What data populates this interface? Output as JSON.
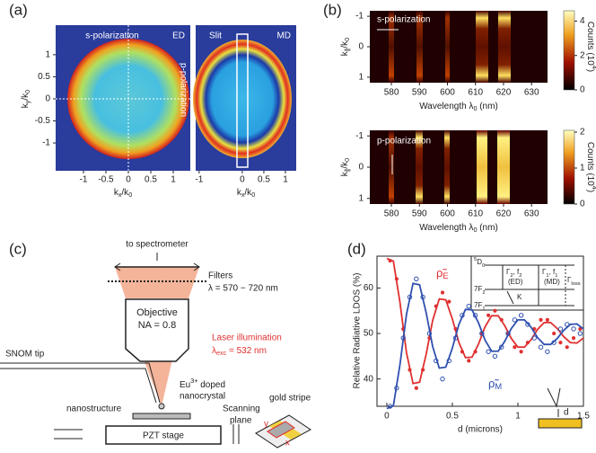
{
  "panels": {
    "a": {
      "label": "(a)",
      "left": {
        "xlim": [
          -1.62,
          1.38
        ],
        "ylim": [
          -1.63,
          1.67
        ],
        "xticks": [
          -1,
          -0.5,
          0,
          0.5,
          1
        ],
        "yticks": [
          -1,
          -0.5,
          0,
          0.5,
          1
        ],
        "texts": {
          "top": "s-polarization",
          "corner": "ED",
          "side": "p-polarization"
        }
      },
      "right": {
        "xlim": [
          -1.08,
          1.25
        ],
        "xticks": [
          -1,
          0,
          0.5,
          1
        ],
        "texts": {
          "slit": "Slit",
          "corner": "MD"
        }
      },
      "xlabel": [
        {
          "t": "k"
        },
        {
          "sub": "x"
        },
        {
          "t": "/k"
        },
        {
          "sub": "0"
        }
      ],
      "ylabel": [
        {
          "t": "k"
        },
        {
          "sub": "y"
        },
        {
          "t": "/k"
        },
        {
          "sub": "0"
        }
      ]
    },
    "b": {
      "label": "(b)",
      "xlim": [
        572.3,
        635.7
      ],
      "xticks": [
        580,
        590,
        600,
        610,
        620,
        630
      ],
      "xlabel": [
        {
          "t": "Wavelength λ"
        },
        {
          "sub": "0"
        },
        {
          "t": " (nm)"
        }
      ],
      "ylabel": [
        {
          "t": "k"
        },
        {
          "sub": "∥"
        },
        {
          "t": "/k"
        },
        {
          "sub": "0"
        }
      ],
      "cbar_label": [
        {
          "t": "Counts (10"
        },
        {
          "sup": "4"
        },
        {
          "t": ")"
        }
      ],
      "top": {
        "note": "s-polarization",
        "ylim": [
          -1.18,
          1.18
        ],
        "yticks": [
          -1,
          0,
          1
        ],
        "cbar_lim": [
          0,
          4.6
        ],
        "cbar_ticks": [
          0,
          2,
          4
        ]
      },
      "bottom": {
        "note": "p-polarization",
        "ylim": [
          -1.18,
          1.18
        ],
        "yticks": [
          -1,
          0,
          1
        ],
        "cbar_lim": [
          0,
          2.05
        ],
        "cbar_ticks": [
          0,
          1,
          2
        ]
      }
    },
    "c": {
      "label": "(c)",
      "texts": {
        "spectrometer": "to spectrometer",
        "filters": "Filters",
        "range": "λ = 570 − 720 nm",
        "objective": "Objective",
        "na": "NA = 0.8",
        "laser": "Laser illumination",
        "snom": "SNOM tip",
        "nanostructure": "nanostructure",
        "nanocrystal": "nanocrystal",
        "stage": "PZT stage",
        "scanning": "Scanning",
        "plane": "plane",
        "gold": "gold stripe",
        "y": "y",
        "x": "x"
      },
      "laser_lambda": [
        {
          "t": "λ"
        },
        {
          "sub": "exc"
        },
        {
          "t": " = 532 nm"
        }
      ],
      "eu": [
        {
          "t": "Eu"
        },
        {
          "sup": "3+"
        },
        {
          "t": " doped"
        }
      ]
    },
    "d": {
      "label": "(d)",
      "xlabel": "d (microns)",
      "ylabel": "Relative Radiative LDOS (%)",
      "xlim": [
        -0.075,
        1.5
      ],
      "ylim": [
        34,
        67
      ],
      "xticks": [
        0,
        0.5,
        1,
        1.5
      ],
      "yticks": [
        40,
        50,
        60
      ],
      "curve_x": [
        0,
        0.05,
        0.1,
        0.15,
        0.2,
        0.25,
        0.3,
        0.35,
        0.4,
        0.45,
        0.5,
        0.55,
        0.6,
        0.65,
        0.7,
        0.75,
        0.8,
        0.85,
        0.9,
        0.95,
        1,
        1.05,
        1.1,
        1.15,
        1.2,
        1.25,
        1.3,
        1.35,
        1.4,
        1.45,
        1.5
      ],
      "point_x": [
        0.025,
        0.075,
        0.125,
        0.175,
        0.225,
        0.275,
        0.325,
        0.375,
        0.425,
        0.475,
        0.525,
        0.575,
        0.625,
        0.675,
        0.725,
        0.775,
        0.825,
        0.875,
        0.925,
        0.975,
        1.025,
        1.075,
        1.125,
        1.175,
        1.225,
        1.275,
        1.325,
        1.375,
        1.425,
        1.475
      ],
      "series": [
        {
          "name": [
            {
              "t": "ρ̃"
            },
            {
              "sub": "E"
            }
          ],
          "color": "#e03030",
          "curve": [
            66.5,
            65.9,
            56.9,
            45.8,
            39.0,
            39.3,
            45.4,
            52.9,
            57.6,
            57.4,
            53.2,
            48.0,
            44.7,
            44.8,
            47.7,
            51.5,
            53.9,
            53.9,
            51.7,
            48.9,
            47.0,
            47.0,
            48.6,
            50.9,
            52.4,
            52.4,
            51.1,
            49.3,
            48.0,
            47.9,
            49.0
          ],
          "points": [
            66,
            62,
            51,
            42,
            38,
            42,
            49,
            56,
            59,
            57,
            51,
            46,
            44,
            46,
            50,
            54,
            55,
            53,
            50,
            47,
            46,
            48,
            51,
            53,
            53,
            50,
            48,
            47,
            49,
            51
          ]
        },
        {
          "name": [
            {
              "t": "ρ̃"
            },
            {
              "sub": "M"
            }
          ],
          "color": "#3050b0",
          "curve": [
            33.5,
            34.1,
            43.1,
            54.2,
            61.0,
            60.7,
            54.6,
            47.1,
            42.4,
            42.6,
            46.8,
            52.0,
            55.3,
            55.2,
            52.3,
            48.5,
            46.1,
            46.1,
            48.3,
            51.1,
            53.0,
            53.0,
            51.4,
            49.1,
            47.6,
            47.6,
            48.9,
            50.7,
            52.0,
            52.1,
            51.0
          ],
          "points": [
            34,
            38,
            49,
            58,
            62,
            58,
            50,
            44,
            40,
            44,
            49,
            54,
            56,
            54,
            50,
            46,
            45,
            47,
            50,
            53,
            54,
            52,
            49,
            47,
            46,
            48,
            51,
            52,
            51,
            50
          ]
        }
      ],
      "inset": {
        "d0": [
          {
            "sup": "5"
          },
          {
            "t": "D"
          },
          {
            "sub": "0"
          }
        ],
        "f2": [
          {
            "t": "7"
          },
          {
            "t": "F"
          },
          {
            "sub": "2"
          }
        ],
        "f1": [
          {
            "t": "7"
          },
          {
            "t": "F"
          },
          {
            "sub": "1"
          }
        ],
        "g2": [
          {
            "t": "Γ"
          },
          {
            "sub": "2"
          },
          {
            "t": ", f"
          },
          {
            "sub": "2"
          }
        ],
        "ed": "(ED)",
        "g1": [
          {
            "t": "Γ"
          },
          {
            "sub": "1"
          },
          {
            "t": ", f"
          },
          {
            "sub": "1"
          }
        ],
        "md": "(MD)",
        "gloss": [
          {
            "t": "Γ"
          },
          {
            "sub": "loss"
          }
        ],
        "k": "K"
      },
      "d_mark": "d"
    }
  }
}
